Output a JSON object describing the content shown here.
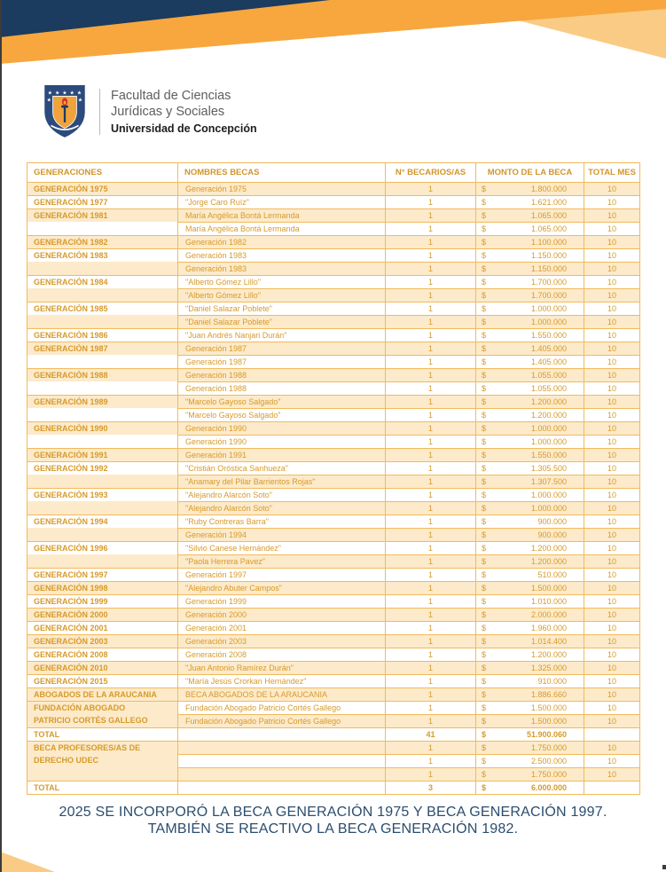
{
  "colors": {
    "navy_corner": "#1b3b5f",
    "orange_band": "#f7a73e",
    "light_orange": "#facb85",
    "table_border_gold": "#f2ba5c",
    "table_text_gold": "#d79a2b",
    "row_cream": "#fceaca",
    "note_navy": "#2b4d6e"
  },
  "header": {
    "logo": {
      "faculty_line1": "Facultad de Ciencias",
      "faculty_line2": "Jurídicas y Sociales",
      "university": "Universidad de Concepción"
    }
  },
  "table": {
    "columns": [
      "GENERACIONES",
      "NOMBRES BECAS",
      "N° BECARIOS/AS",
      "MONTO DE LA BECA",
      "TOTAL MES"
    ],
    "currency_symbol": "$",
    "rows": [
      {
        "gen": "GENERACIÓN 1975",
        "beca": "Generación 1975",
        "n": "1",
        "monto": "1.800.000",
        "mes": "10"
      },
      {
        "gen": "GENERACIÓN 1977",
        "beca": "\"Jorge Caro Ruíz\"",
        "n": "1",
        "monto": "1.621.000",
        "mes": "10"
      },
      {
        "gen": "GENERACIÓN 1981",
        "beca": "María Angélica Bontá Lermanda",
        "n": "1",
        "monto": "1.065.000",
        "mes": "10"
      },
      {
        "gen": "",
        "merge": true,
        "beca": "María Angélica Bontá Lermanda",
        "n": "1",
        "monto": "1.065.000",
        "mes": "10"
      },
      {
        "gen": "GENERACIÓN 1982",
        "beca": "Generación 1982",
        "n": "1",
        "monto": "1.100.000",
        "mes": "10"
      },
      {
        "gen": "GENERACIÓN 1983",
        "beca": "Generación 1983",
        "n": "1",
        "monto": "1.150.000",
        "mes": "10"
      },
      {
        "gen": "",
        "merge": true,
        "beca": "Generación 1983",
        "n": "1",
        "monto": "1.150.000",
        "mes": "10"
      },
      {
        "gen": "GENERACIÓN 1984",
        "beca": "\"Alberto Gómez Lillo\"",
        "n": "1",
        "monto": "1.700.000",
        "mes": "10"
      },
      {
        "gen": "",
        "merge": true,
        "beca": "\"Alberto Gómez Lillo\"",
        "n": "1",
        "monto": "1.700.000",
        "mes": "10"
      },
      {
        "gen": "GENERACIÓN 1985",
        "beca": "\"Daniel Salazar Poblete\"",
        "n": "1",
        "monto": "1.000.000",
        "mes": "10"
      },
      {
        "gen": "",
        "merge": true,
        "beca": "\"Daniel Salazar Poblete\"",
        "n": "1",
        "monto": "1.000.000",
        "mes": "10"
      },
      {
        "gen": "GENERACIÓN 1986",
        "beca": "\"Juan Andrés Nanjari Durán\"",
        "n": "1",
        "monto": "1.550.000",
        "mes": "10"
      },
      {
        "gen": "GENERACIÓN 1987",
        "beca": "Generación 1987",
        "n": "1",
        "monto": "1.405.000",
        "mes": "10"
      },
      {
        "gen": "",
        "merge": true,
        "beca": "Generación 1987",
        "n": "1",
        "monto": "1.405.000",
        "mes": "10"
      },
      {
        "gen": "GENERACIÓN 1988",
        "beca": "Generación 1988",
        "n": "1",
        "monto": "1.055.000",
        "mes": "10"
      },
      {
        "gen": "",
        "merge": true,
        "beca": "Generación 1988",
        "n": "1",
        "monto": "1.055.000",
        "mes": "10"
      },
      {
        "gen": "GENERACIÓN 1989",
        "beca": "\"Marcelo Gayoso Salgado\"",
        "n": "1",
        "monto": "1.200.000",
        "mes": "10"
      },
      {
        "gen": "",
        "merge": true,
        "beca": "\"Marcelo Gayoso Salgado\"",
        "n": "1",
        "monto": "1.200.000",
        "mes": "10"
      },
      {
        "gen": "GENERACIÓN 1990",
        "beca": "Generación 1990",
        "n": "1",
        "monto": "1.000.000",
        "mes": "10"
      },
      {
        "gen": "",
        "merge": true,
        "beca": "Generación 1990",
        "n": "1",
        "monto": "1.000.000",
        "mes": "10"
      },
      {
        "gen": "GENERACIÓN 1991",
        "beca": "Generación 1991",
        "n": "1",
        "monto": "1.550.000",
        "mes": "10"
      },
      {
        "gen": "GENERACIÓN 1992",
        "beca": "\"Cristián Oróstica Sanhueza\"",
        "n": "1",
        "monto": "1.305.500",
        "mes": "10"
      },
      {
        "gen": "",
        "merge": true,
        "beca": "\"Anamary del Pilar Barrientos Rojas\"",
        "n": "1",
        "monto": "1.307.500",
        "mes": "10"
      },
      {
        "gen": "GENERACIÓN 1993",
        "beca": "\"Alejandro Alarcón Soto\"",
        "n": "1",
        "monto": "1.000.000",
        "mes": "10"
      },
      {
        "gen": "",
        "merge": true,
        "beca": "\"Alejandro Alarcón Soto\"",
        "n": "1",
        "monto": "1.000.000",
        "mes": "10"
      },
      {
        "gen": "GENERACIÓN 1994",
        "beca": "\"Ruby Contreras Barra\"",
        "n": "1",
        "monto": "900.000",
        "mes": "10"
      },
      {
        "gen": "",
        "merge": true,
        "beca": "Generación 1994",
        "n": "1",
        "monto": "900.000",
        "mes": "10"
      },
      {
        "gen": "GENERACIÓN 1996",
        "beca": "\"Silvio Canese Hernández\"",
        "n": "1",
        "monto": "1.200.000",
        "mes": "10"
      },
      {
        "gen": "",
        "merge": true,
        "beca": "\"Paola Herrera Pavez\"",
        "n": "1",
        "monto": "1.200.000",
        "mes": "10"
      },
      {
        "gen": "GENERACIÓN 1997",
        "beca": "Generación 1997",
        "n": "1",
        "monto": "510.000",
        "mes": "10"
      },
      {
        "gen": "GENERACIÓN 1998",
        "beca": "\"Alejandro Abuter Campos\"",
        "n": "1",
        "monto": "1.500.000",
        "mes": "10"
      },
      {
        "gen": "GENERACIÓN 1999",
        "beca": "Generación 1999",
        "n": "1",
        "monto": "1.010.000",
        "mes": "10"
      },
      {
        "gen": "GENERACIÓN 2000",
        "beca": "Generación 2000",
        "n": "1",
        "monto": "2.000.000",
        "mes": "10"
      },
      {
        "gen": "GENERACIÓN 2001",
        "beca": "Generación 2001",
        "n": "1",
        "monto": "1.960.000",
        "mes": "10"
      },
      {
        "gen": "GENERACIÓN 2003",
        "beca": "Generación 2003",
        "n": "1",
        "monto": "1.014.400",
        "mes": "10"
      },
      {
        "gen": "GENERACIÓN 2008",
        "beca": "Generación 2008",
        "n": "1",
        "monto": "1.200.000",
        "mes": "10"
      },
      {
        "gen": "GENERACIÓN 2010",
        "beca": "\"Juan Antonio Ramírez Durán\"",
        "n": "1",
        "monto": "1.325.000",
        "mes": "10"
      },
      {
        "gen": "GENERACIÓN 2015",
        "beca": "\"María Jesús Crorkan Hernández\"",
        "n": "1",
        "monto": "910.000",
        "mes": "10"
      },
      {
        "gen": "ABOGADOS DE LA ARAUCANIA",
        "beca": "BECA  ABOGADOS DE LA ARAUCANIA",
        "n": "1",
        "monto": "1.886.660",
        "mes": "10"
      },
      {
        "gen": "FUNDACIÓN ABOGADO",
        "genCream": true,
        "beca": "Fundación Abogado Patricio Cortés Gallego",
        "n": "1",
        "monto": "1.500.000",
        "mes": "10"
      },
      {
        "gen": "PATRICIO CORTÉS GALLEGO",
        "genCream": true,
        "merge": true,
        "beca": "Fundación Abogado Patricio Cortés Gallego",
        "n": "1",
        "monto": "1.500.000",
        "mes": "10"
      },
      {
        "gen": "TOTAL",
        "total": true,
        "beca": "",
        "n": "41",
        "monto": "51.900.060",
        "mes": ""
      },
      {
        "gen": "BECA PROFESORES/AS  DE",
        "genCream": true,
        "beca": "",
        "n": "1",
        "monto": "1.750.000",
        "mes": "10"
      },
      {
        "gen": "DERECHO UDEC",
        "genCream": true,
        "merge": true,
        "beca": "",
        "n": "1",
        "monto": "2.500.000",
        "mes": "10"
      },
      {
        "gen": "",
        "genCream": true,
        "merge": true,
        "beca": "",
        "n": "1",
        "monto": "1.750.000",
        "mes": "10"
      },
      {
        "gen": "TOTAL",
        "total": true,
        "beca": "",
        "n": "3",
        "monto": "6.000.000",
        "mes": ""
      }
    ]
  },
  "footer": {
    "line1": "2025 SE INCORPORÓ LA BECA GENERACIÓN 1975 Y BECA GENERACIÓN 1997.",
    "line2": "TAMBIÉN SE REACTIVO LA BECA GENERACIÓN 1982."
  }
}
